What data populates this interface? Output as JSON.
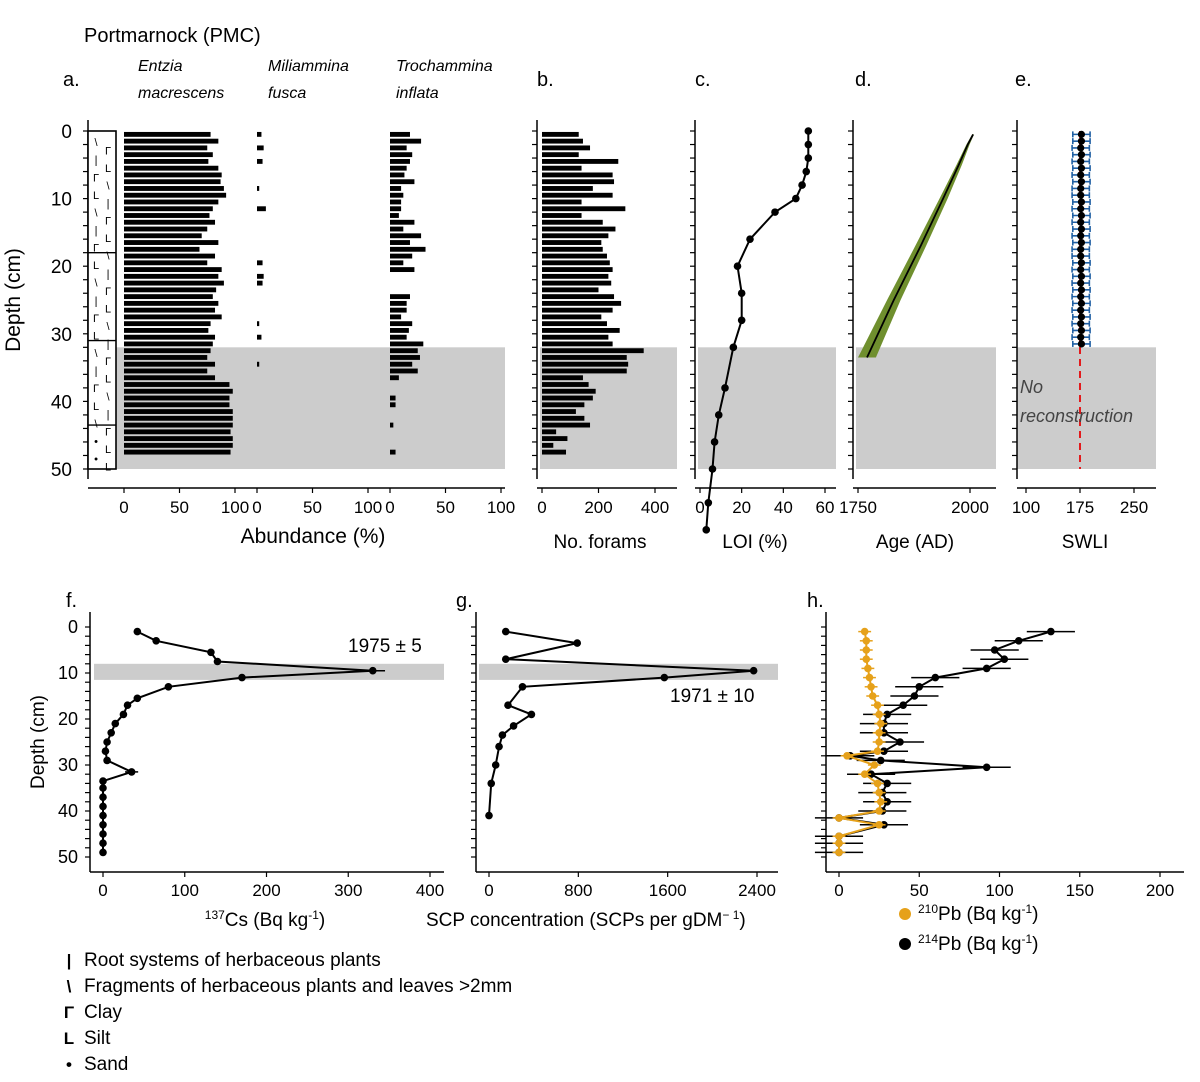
{
  "title": "Portmarnock (PMC)",
  "colors": {
    "bar": "#000000",
    "shade": "#cccccc",
    "age_band": "#6f8f2e",
    "swli_err": "#1f5fa3",
    "swli_ref": "#e31a1c",
    "pb210": "#e6a11a",
    "pb214": "#000000"
  },
  "chart_data": [
    {
      "panel": "a.",
      "type": "bar",
      "xlabel": "Abundance (%)",
      "ylabel": "Depth (cm)",
      "ylim": [
        0,
        50
      ],
      "yticks": [
        0,
        10,
        20,
        30,
        40,
        50
      ],
      "xticks": [
        0,
        50,
        100
      ],
      "shade_range": [
        32,
        50
      ],
      "depths": [
        0.5,
        1.5,
        2.5,
        3.5,
        4.5,
        5.5,
        6.5,
        7.5,
        8.5,
        9.5,
        10.5,
        11.5,
        12.5,
        13.5,
        14.5,
        15.5,
        16.5,
        17.5,
        18.5,
        19.5,
        20.5,
        21.5,
        22.5,
        23.5,
        24.5,
        25.5,
        26.5,
        27.5,
        28.5,
        29.5,
        30.5,
        31.5,
        32.5,
        33.5,
        34.5,
        35.5,
        36.5,
        37.5,
        38.5,
        39.5,
        40.5,
        41.5,
        42.5,
        43.5,
        44.5,
        45.5,
        46.5,
        47.5
      ],
      "series": [
        {
          "name": "Entzia macrescens",
          "values": [
            78,
            85,
            75,
            80,
            76,
            85,
            88,
            87,
            90,
            92,
            85,
            80,
            77,
            82,
            75,
            70,
            85,
            68,
            82,
            75,
            88,
            85,
            90,
            83,
            80,
            85,
            82,
            88,
            78,
            76,
            82,
            80,
            78,
            75,
            82,
            75,
            82,
            95,
            98,
            95,
            95,
            98,
            98,
            98,
            96,
            98,
            98,
            96
          ]
        },
        {
          "name": "Miliammina fusca",
          "values": [
            4,
            0,
            6,
            0,
            5,
            0,
            0,
            0,
            2,
            0,
            0,
            8,
            0,
            0,
            0,
            0,
            0,
            0,
            0,
            5,
            0,
            6,
            5,
            0,
            0,
            0,
            0,
            0,
            2,
            0,
            4,
            0,
            0,
            0,
            2,
            0,
            0,
            0,
            0,
            0,
            0,
            0,
            0,
            0,
            0,
            0,
            0,
            0
          ]
        },
        {
          "name": "Trochammina inflata",
          "values": [
            18,
            28,
            15,
            20,
            18,
            15,
            13,
            22,
            10,
            12,
            10,
            10,
            8,
            22,
            12,
            28,
            18,
            32,
            20,
            12,
            22,
            0,
            0,
            0,
            18,
            15,
            15,
            10,
            20,
            17,
            15,
            30,
            25,
            27,
            20,
            25,
            8,
            0,
            0,
            5,
            5,
            0,
            0,
            3,
            0,
            0,
            0,
            5
          ]
        }
      ],
      "series_labels": [
        [
          "Entzia",
          "macrescens"
        ],
        [
          "Miliammina",
          "fusca"
        ],
        [
          "Trochammina",
          "inflata"
        ]
      ],
      "lithology": [
        {
          "from": 0,
          "to": 18,
          "symbols": "root systems, herbaceous fragments, clay, silt"
        },
        {
          "from": 18,
          "to": 31,
          "symbols": "root systems, clay, silt"
        },
        {
          "from": 31,
          "to": 43.5,
          "symbols": "root systems, clay, silt"
        },
        {
          "from": 43.5,
          "to": 50,
          "symbols": "sand, clay, silt"
        }
      ]
    },
    {
      "panel": "b.",
      "type": "bar",
      "xlabel": "No. forams",
      "xticks": [
        0,
        200,
        400
      ],
      "xlim": [
        0,
        420
      ],
      "depths": [
        0.5,
        1.5,
        2.5,
        3.5,
        4.5,
        5.5,
        6.5,
        7.5,
        8.5,
        9.5,
        10.5,
        11.5,
        12.5,
        13.5,
        14.5,
        15.5,
        16.5,
        17.5,
        18.5,
        19.5,
        20.5,
        21.5,
        22.5,
        23.5,
        24.5,
        25.5,
        26.5,
        27.5,
        28.5,
        29.5,
        30.5,
        31.5,
        32.5,
        33.5,
        34.5,
        35.5,
        36.5,
        37.5,
        38.5,
        39.5,
        40.5,
        41.5,
        42.5,
        43.5,
        44.5,
        45.5,
        46.5,
        47.5
      ],
      "values": [
        130,
        145,
        170,
        130,
        270,
        140,
        250,
        255,
        180,
        250,
        140,
        295,
        140,
        215,
        260,
        235,
        210,
        215,
        230,
        240,
        250,
        235,
        245,
        200,
        255,
        280,
        250,
        210,
        230,
        275,
        235,
        250,
        360,
        300,
        305,
        300,
        145,
        165,
        190,
        180,
        150,
        120,
        150,
        170,
        50,
        90,
        40,
        85
      ]
    },
    {
      "panel": "c.",
      "type": "line",
      "xlabel": "LOI (%)",
      "xticks": [
        0,
        20,
        40,
        60
      ],
      "xlim": [
        0,
        62
      ],
      "points": [
        [
          52,
          0
        ],
        [
          52,
          2
        ],
        [
          52,
          4
        ],
        [
          51,
          6
        ],
        [
          49,
          8
        ],
        [
          46,
          10
        ],
        [
          36,
          12
        ],
        [
          24,
          16
        ],
        [
          18,
          20
        ],
        [
          20,
          24
        ],
        [
          20,
          28
        ],
        [
          16,
          32
        ],
        [
          12,
          38
        ],
        [
          9,
          42
        ],
        [
          7,
          46
        ],
        [
          6,
          50
        ],
        [
          4,
          55
        ],
        [
          3,
          59
        ]
      ]
    },
    {
      "panel": "d.",
      "type": "area",
      "xlabel": "Age (AD)",
      "xticks": [
        1750,
        2000
      ],
      "xlim": [
        1740,
        2050
      ],
      "line": [
        [
          1770,
          33.5
        ],
        [
          1830,
          25
        ],
        [
          1890,
          17
        ],
        [
          1940,
          10
        ],
        [
          1975,
          5
        ],
        [
          1995,
          2
        ],
        [
          2007,
          0.5
        ]
      ],
      "band_lower": [
        [
          1750,
          33.5
        ],
        [
          1815,
          25
        ],
        [
          1878,
          17
        ],
        [
          1932,
          10
        ],
        [
          1970,
          5
        ],
        [
          1992,
          2
        ],
        [
          2005,
          0.5
        ]
      ],
      "band_upper": [
        [
          1790,
          33.5
        ],
        [
          1845,
          25
        ],
        [
          1902,
          17
        ],
        [
          1950,
          10
        ],
        [
          1982,
          5
        ],
        [
          1999,
          2
        ],
        [
          2009,
          0.5
        ]
      ]
    },
    {
      "panel": "e.",
      "type": "scatter",
      "xlabel": "SWLI",
      "xticks": [
        100,
        175,
        250
      ],
      "xlim": [
        100,
        265
      ],
      "reference_x": 175,
      "depths": [
        0.5,
        1.5,
        2.5,
        3.5,
        4.5,
        5.5,
        6.5,
        7.5,
        8.5,
        9.5,
        10.5,
        11.5,
        12.5,
        13.5,
        14.5,
        15.5,
        16.5,
        17.5,
        18.5,
        19.5,
        20.5,
        21.5,
        22.5,
        23.5,
        24.5,
        25.5,
        26.5,
        27.5,
        28.5,
        29.5,
        30.5,
        31.5
      ],
      "values": [
        177,
        177,
        176,
        177,
        176,
        177,
        176,
        177,
        176,
        176,
        177,
        176,
        177,
        176,
        177,
        176,
        177,
        176,
        176,
        177,
        176,
        177,
        176,
        177,
        176,
        177,
        176,
        177,
        176,
        177,
        176,
        177
      ],
      "error": 12,
      "annotation": [
        "No",
        "reconstruction"
      ]
    },
    {
      "panel": "f.",
      "type": "line",
      "xlabel_parts": [
        "137",
        "Cs (Bq kg",
        "-1",
        ")"
      ],
      "ylabel": "Depth (cm)",
      "ylim": [
        0,
        50
      ],
      "yticks": [
        0,
        10,
        20,
        30,
        40,
        50
      ],
      "xticks": [
        0,
        100,
        200,
        300,
        400
      ],
      "xlim": [
        -10,
        430
      ],
      "shade_range": [
        8,
        11.5
      ],
      "annotation": "1975 ±  5",
      "points": [
        [
          42,
          1
        ],
        [
          65,
          3
        ],
        [
          132,
          5.5
        ],
        [
          140,
          7.5
        ],
        [
          330,
          9.5
        ],
        [
          170,
          11
        ],
        [
          80,
          13
        ],
        [
          42,
          15.5
        ],
        [
          30,
          17
        ],
        [
          25,
          19
        ],
        [
          15,
          21
        ],
        [
          10,
          23
        ],
        [
          5,
          25
        ],
        [
          3,
          27
        ],
        [
          5,
          29
        ],
        [
          35,
          31.5
        ],
        [
          0,
          33.5
        ],
        [
          0,
          35
        ],
        [
          0,
          37
        ],
        [
          0,
          39
        ],
        [
          0,
          41
        ],
        [
          0,
          43
        ],
        [
          0,
          45
        ],
        [
          0,
          47
        ],
        [
          0,
          49
        ]
      ],
      "xerr": [
        [
          35,
          31.5,
          8
        ],
        [
          330,
          9.5,
          15
        ]
      ]
    },
    {
      "panel": "g.",
      "type": "line",
      "xlabel": "SCP concentration (SCPs per gDM",
      "xlabel_sup": "− 1",
      "xticks": [
        0,
        800,
        1600,
        2400
      ],
      "xlim": [
        -100,
        2600
      ],
      "shade_range": [
        8,
        11.5
      ],
      "annotation": "1971 ±  10",
      "points": [
        [
          150,
          1
        ],
        [
          790,
          3.5
        ],
        [
          150,
          7
        ],
        [
          2370,
          9.5
        ],
        [
          1570,
          11
        ],
        [
          300,
          13
        ],
        [
          170,
          17
        ],
        [
          380,
          19
        ],
        [
          220,
          21.5
        ],
        [
          120,
          23.5
        ],
        [
          90,
          26
        ],
        [
          60,
          30
        ],
        [
          20,
          34
        ],
        [
          0,
          41
        ]
      ]
    },
    {
      "panel": "h.",
      "type": "line",
      "xticks": [
        0,
        50,
        100,
        150,
        200
      ],
      "xlim": [
        -5,
        210
      ],
      "series": [
        {
          "name_parts": [
            "210",
            "Pb (Bq kg",
            "-1",
            ")"
          ],
          "points": [
            [
              16,
              1
            ],
            [
              17,
              3
            ],
            [
              17,
              5
            ],
            [
              17,
              7
            ],
            [
              18,
              9
            ],
            [
              19,
              11
            ],
            [
              20,
              13
            ],
            [
              21,
              15
            ],
            [
              24,
              17
            ],
            [
              25,
              19
            ],
            [
              26,
              21
            ],
            [
              25,
              23
            ],
            [
              25,
              25
            ],
            [
              24,
              27
            ],
            [
              5,
              28
            ],
            [
              22,
              30
            ],
            [
              16,
              32
            ],
            [
              24,
              34
            ],
            [
              25,
              36
            ],
            [
              26,
              38
            ],
            [
              25,
              40
            ],
            [
              0,
              41.5
            ],
            [
              25,
              43
            ],
            [
              0,
              45.5
            ],
            [
              0,
              47
            ],
            [
              0,
              49
            ]
          ],
          "err": 4
        },
        {
          "name_parts": [
            "214",
            "Pb (Bq kg",
            "-1",
            ")"
          ],
          "points": [
            [
              132,
              1
            ],
            [
              112,
              3
            ],
            [
              97,
              5
            ],
            [
              103,
              7
            ],
            [
              92,
              9
            ],
            [
              60,
              11
            ],
            [
              50,
              13
            ],
            [
              47,
              15
            ],
            [
              40,
              17
            ],
            [
              30,
              19
            ],
            [
              28,
              21
            ],
            [
              28,
              23
            ],
            [
              38,
              25
            ],
            [
              28,
              27
            ],
            [
              7,
              28
            ],
            [
              26,
              29
            ],
            [
              92,
              30.5
            ],
            [
              20,
              32
            ],
            [
              30,
              34
            ],
            [
              27,
              36
            ],
            [
              30,
              38
            ],
            [
              27,
              40
            ],
            [
              0,
              41.5
            ],
            [
              28,
              43
            ],
            [
              0,
              45.5
            ],
            [
              0,
              47
            ],
            [
              0,
              49
            ]
          ],
          "err": 15
        }
      ]
    }
  ],
  "legend": [
    {
      "symbol": "|",
      "label": "Root systems of herbaceous plants"
    },
    {
      "symbol": "\\",
      "label": "Fragments of herbaceous plants and leaves >2mm"
    },
    {
      "symbol": "Γ",
      "label": "Clay"
    },
    {
      "symbol": "L",
      "label": "Silt"
    },
    {
      "symbol": "•",
      "label": "Sand"
    }
  ]
}
